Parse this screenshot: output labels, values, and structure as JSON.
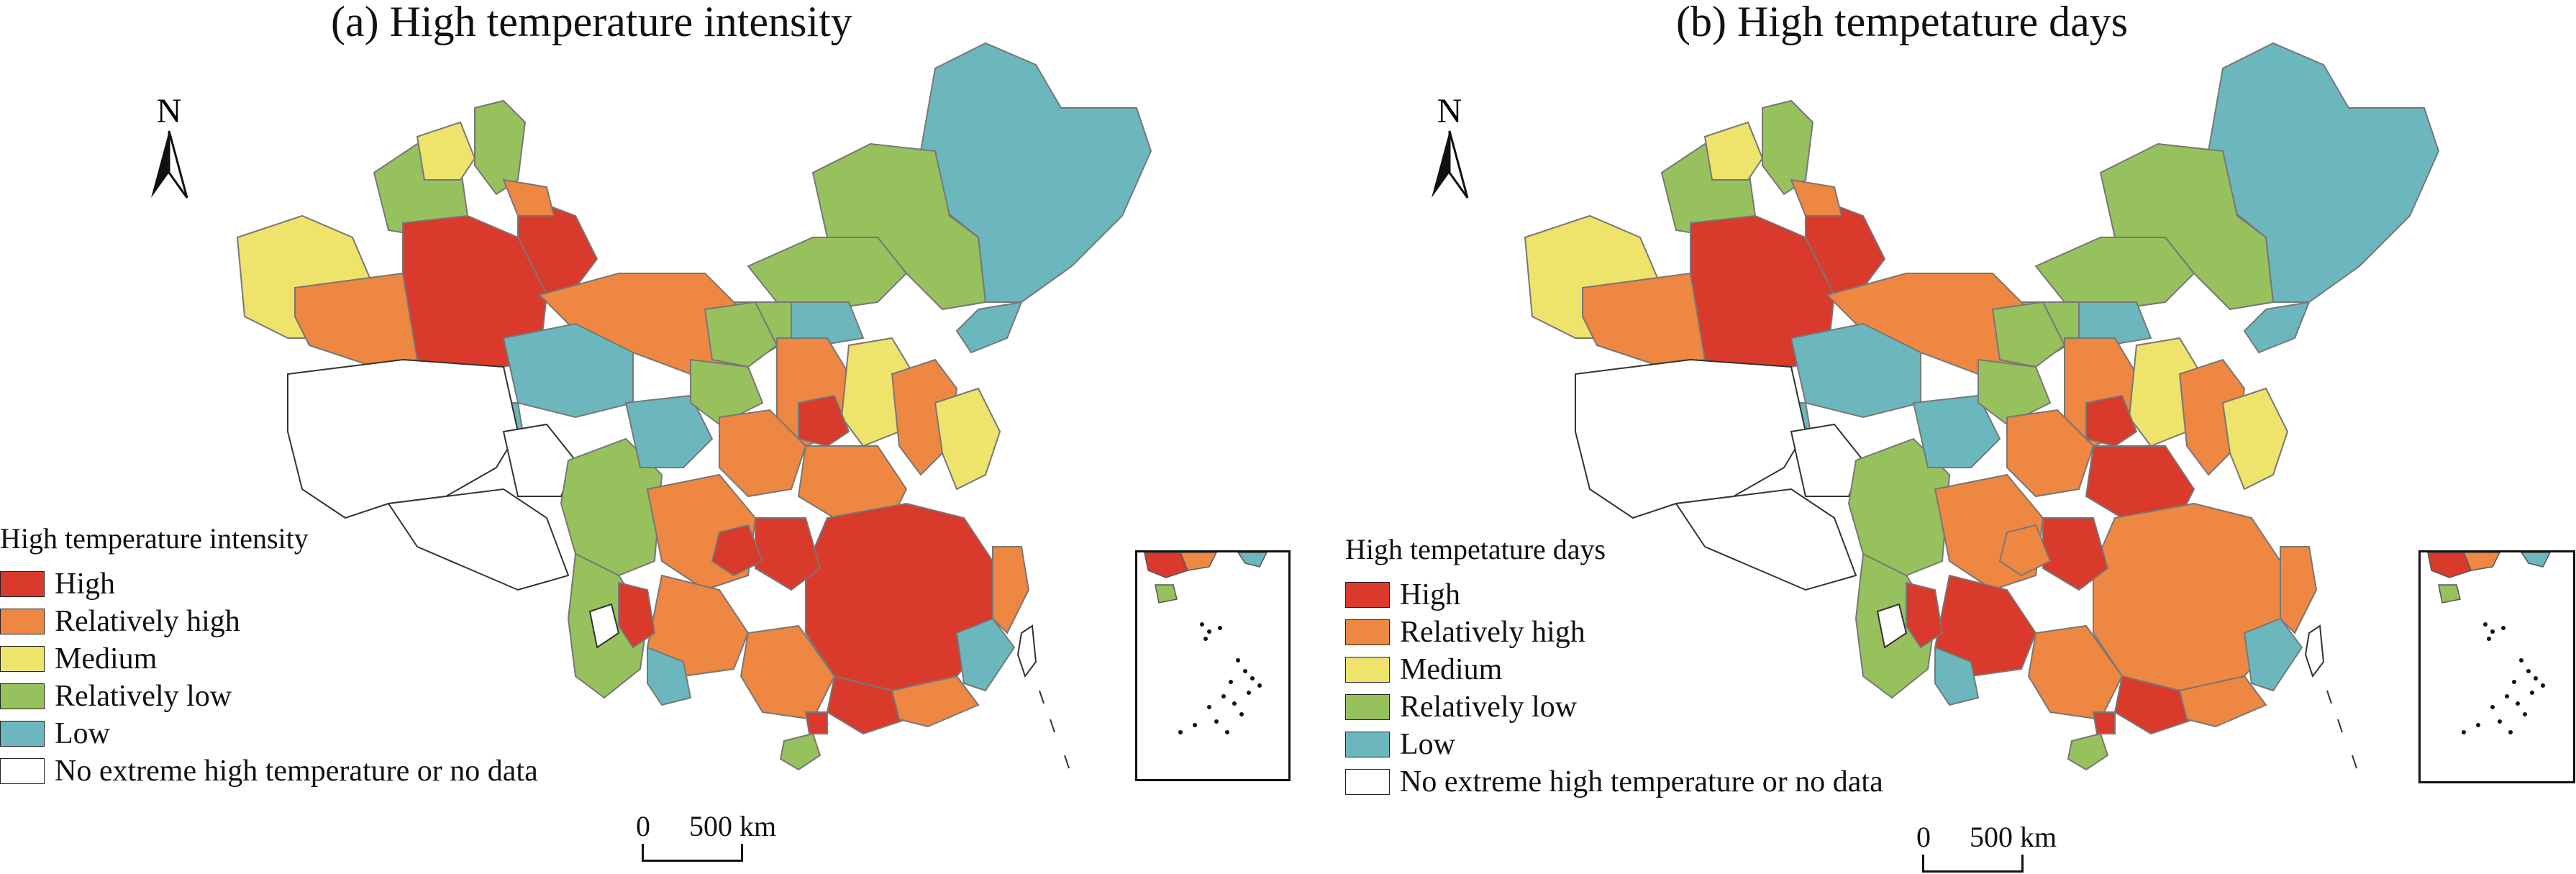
{
  "panels": [
    {
      "id": "a",
      "title": "(a) High temperature intensity",
      "north_label": "N",
      "legend_title": "High temperature intensity",
      "scale": {
        "zero": "0",
        "distance": "500 km"
      }
    },
    {
      "id": "b",
      "title": "(b) High tempetature days",
      "north_label": "N",
      "legend_title": "High tempetature days",
      "scale": {
        "zero": "0",
        "distance": "500 km"
      }
    }
  ],
  "legend_items": [
    {
      "label": "High",
      "color": "#d93a2b"
    },
    {
      "label": "Relatively high",
      "color": "#ee8742"
    },
    {
      "label": "Medium",
      "color": "#eee36b"
    },
    {
      "label": "Relatively low",
      "color": "#97c15c"
    },
    {
      "label": "Low",
      "color": "#6bb7bd"
    },
    {
      "label": "No extreme high temperature or no data",
      "color": "#ffffff"
    }
  ],
  "colors": {
    "high": "#d93a2b",
    "relatively_high": "#ee8742",
    "medium": "#eee36b",
    "relatively_low": "#97c15c",
    "low": "#6bb7bd",
    "no_data": "#ffffff",
    "boundary": "#777777"
  }
}
